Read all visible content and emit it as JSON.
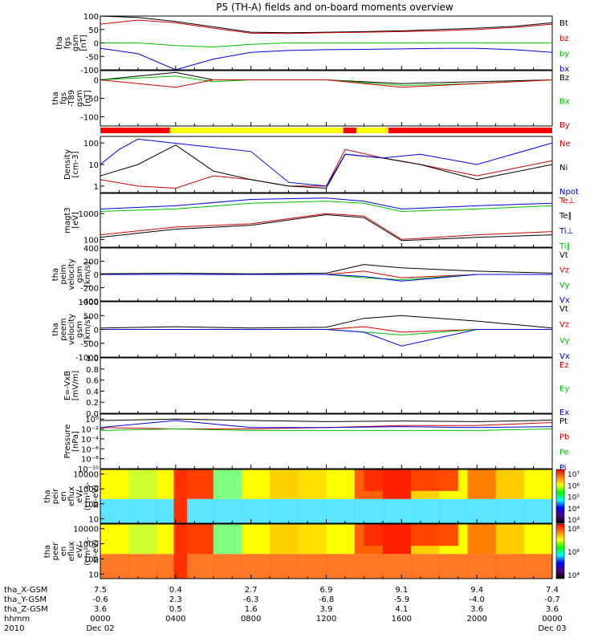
{
  "title": "P5 (TH-A) fields and on-board moments overview",
  "chart_data": [
    {
      "type": "line",
      "ylabel": [
        "tha",
        "fgs",
        "gsm",
        "[nT]"
      ],
      "ylim": [
        -100,
        100
      ],
      "yticks": [
        100,
        50,
        0,
        -50,
        -100
      ],
      "legend_placement": "right",
      "series": [
        {
          "name": "Bt",
          "color": "#000000",
          "x": [
            0,
            2,
            4,
            6,
            8,
            10,
            12,
            14,
            16,
            18,
            20,
            22,
            24
          ],
          "y": [
            100,
            95,
            80,
            60,
            40,
            38,
            40,
            42,
            45,
            50,
            55,
            62,
            75
          ]
        },
        {
          "name": "bz",
          "color": "#d00000",
          "x": [
            0,
            2,
            4,
            6,
            8,
            10,
            12,
            14,
            16,
            18,
            20,
            22,
            24
          ],
          "y": [
            70,
            85,
            75,
            55,
            36,
            35,
            38,
            40,
            42,
            45,
            50,
            58,
            70
          ]
        },
        {
          "name": "by",
          "color": "#00c000",
          "x": [
            0,
            2,
            4,
            6,
            8,
            10,
            12,
            14,
            16,
            18,
            20,
            22,
            24
          ],
          "y": [
            0,
            0,
            -10,
            -15,
            -5,
            0,
            0,
            0,
            0,
            0,
            0,
            0,
            0
          ]
        },
        {
          "name": "bx",
          "color": "#0000dd",
          "x": [
            0,
            2,
            4,
            6,
            8,
            10,
            12,
            14,
            16,
            18,
            20,
            22,
            24
          ],
          "y": [
            -20,
            -40,
            -100,
            -60,
            -35,
            -28,
            -25,
            -24,
            -22,
            -20,
            -20,
            -25,
            -35
          ]
        }
      ]
    },
    {
      "type": "line",
      "ylabel": [
        "tha",
        "fgs",
        "-T89",
        "gsm",
        "[nT]"
      ],
      "ylim": [
        -125,
        25
      ],
      "yticks": [
        0,
        -50,
        -100
      ],
      "legend_placement": "right",
      "series": [
        {
          "name": "Bz",
          "color": "#000000",
          "x": [
            0,
            4,
            6,
            8,
            12,
            16,
            20,
            24
          ],
          "y": [
            0,
            20,
            0,
            0,
            0,
            -10,
            -5,
            0
          ]
        },
        {
          "name": "Bx",
          "color": "#00c000",
          "x": [
            0,
            4,
            6,
            8,
            12,
            16,
            20,
            24
          ],
          "y": [
            0,
            10,
            -5,
            0,
            0,
            -15,
            -10,
            0
          ]
        },
        {
          "name": "By",
          "color": "#d00000",
          "x": [
            0,
            4,
            6,
            8,
            12,
            16,
            20,
            24
          ],
          "y": [
            0,
            -20,
            0,
            0,
            0,
            -20,
            -10,
            0
          ]
        }
      ]
    },
    {
      "type": "line",
      "ylabel": [
        "Density",
        "[cm-3]"
      ],
      "scale": "log",
      "ylim": [
        0.5,
        200
      ],
      "yticks": [
        "100",
        "10",
        "1"
      ],
      "legend_placement": "right",
      "series": [
        {
          "name": "Ne",
          "color": "#d00000",
          "x": [
            0,
            2,
            4,
            6,
            8,
            10,
            12,
            13,
            15,
            17,
            20,
            24
          ],
          "y": [
            2,
            1,
            0.8,
            3,
            2,
            1,
            1,
            50,
            20,
            10,
            3,
            15
          ]
        },
        {
          "name": "Ni",
          "color": "#000000",
          "x": [
            0,
            2,
            4,
            6,
            8,
            10,
            12,
            13,
            15,
            17,
            20,
            24
          ],
          "y": [
            3,
            10,
            80,
            5,
            2,
            1,
            0.8,
            30,
            20,
            10,
            2,
            10
          ]
        },
        {
          "name": "Npot",
          "color": "#0000dd",
          "x": [
            0,
            1,
            2,
            8,
            10,
            12,
            13,
            15,
            17,
            20,
            24
          ],
          "y": [
            10,
            50,
            150,
            40,
            1.5,
            1,
            30,
            20,
            30,
            10,
            100
          ]
        }
      ]
    },
    {
      "type": "line",
      "ylabel": [
        "magt3",
        "[eV]"
      ],
      "scale": "log",
      "ylim": [
        50,
        6000
      ],
      "yticks": [
        "1000",
        "100"
      ],
      "legend_placement": "right",
      "series": [
        {
          "name": "Te⊥",
          "color": "#d00000",
          "x": [
            0,
            4,
            8,
            12,
            14,
            16,
            20,
            24
          ],
          "y": [
            150,
            300,
            400,
            1000,
            800,
            100,
            150,
            200
          ]
        },
        {
          "name": "Te∥",
          "color": "#000000",
          "x": [
            0,
            4,
            8,
            12,
            14,
            16,
            20,
            24
          ],
          "y": [
            120,
            250,
            350,
            900,
            700,
            90,
            120,
            150
          ]
        },
        {
          "name": "Ti⊥",
          "color": "#0000dd",
          "x": [
            0,
            4,
            8,
            12,
            14,
            16,
            20,
            24
          ],
          "y": [
            1500,
            2000,
            3500,
            4000,
            3000,
            1500,
            2000,
            2500
          ]
        },
        {
          "name": "Ti∥",
          "color": "#00c000",
          "x": [
            0,
            4,
            8,
            12,
            14,
            16,
            20,
            24
          ],
          "y": [
            1200,
            1500,
            2500,
            3000,
            2500,
            1200,
            1500,
            2000
          ]
        }
      ]
    },
    {
      "type": "line",
      "ylabel": [
        "tha",
        "peim",
        "velocity",
        "gsm",
        "[km/s]"
      ],
      "ylim": [
        -400,
        400
      ],
      "yticks": [
        400,
        200,
        0,
        -200,
        -400
      ],
      "legend_placement": "right",
      "series": [
        {
          "name": "Vt",
          "color": "#000000",
          "x": [
            0,
            4,
            8,
            12,
            14,
            16,
            20,
            24
          ],
          "y": [
            10,
            20,
            10,
            20,
            150,
            100,
            50,
            20
          ]
        },
        {
          "name": "Vz",
          "color": "#d00000",
          "x": [
            0,
            4,
            8,
            12,
            14,
            16,
            20,
            24
          ],
          "y": [
            0,
            0,
            0,
            0,
            50,
            -50,
            0,
            0
          ]
        },
        {
          "name": "Vy",
          "color": "#00c000",
          "x": [
            0,
            4,
            8,
            12,
            14,
            16,
            20,
            24
          ],
          "y": [
            0,
            0,
            0,
            0,
            -50,
            -80,
            0,
            0
          ]
        },
        {
          "name": "Vx",
          "color": "#0000dd",
          "x": [
            0,
            4,
            8,
            12,
            14,
            16,
            20,
            24
          ],
          "y": [
            0,
            0,
            0,
            0,
            -30,
            -100,
            0,
            0
          ]
        }
      ]
    },
    {
      "type": "line",
      "ylabel": [
        "tha",
        "peem",
        "velocity",
        "gsm",
        "[km/s]"
      ],
      "ylim": [
        -1000,
        1000
      ],
      "yticks": [
        1000,
        500,
        0,
        -500,
        -1000
      ],
      "legend_placement": "right",
      "series": [
        {
          "name": "Vt",
          "color": "#000000",
          "x": [
            0,
            4,
            8,
            12,
            14,
            16,
            20,
            24
          ],
          "y": [
            50,
            100,
            50,
            80,
            400,
            500,
            300,
            50
          ]
        },
        {
          "name": "Vz",
          "color": "#d00000",
          "x": [
            0,
            4,
            8,
            12,
            14,
            16,
            20,
            24
          ],
          "y": [
            0,
            0,
            0,
            0,
            100,
            -100,
            0,
            0
          ]
        },
        {
          "name": "Vy",
          "color": "#00c000",
          "x": [
            0,
            4,
            8,
            12,
            14,
            16,
            20,
            24
          ],
          "y": [
            0,
            0,
            0,
            0,
            -100,
            -200,
            0,
            0
          ]
        },
        {
          "name": "Vx",
          "color": "#0000dd",
          "x": [
            0,
            4,
            8,
            12,
            14,
            16,
            20,
            24
          ],
          "y": [
            0,
            0,
            0,
            0,
            -100,
            -600,
            0,
            0
          ]
        }
      ]
    },
    {
      "type": "line",
      "ylabel": [
        "E=-VxB",
        "[mV/m]"
      ],
      "ylim": [
        0,
        1
      ],
      "yticks": [
        "1.0",
        "0.8",
        "0.6",
        "0.4",
        "0.2",
        "0.0"
      ],
      "legend_placement": "right",
      "series": [
        {
          "name": "Ez",
          "color": "#d00000",
          "x": [],
          "y": []
        },
        {
          "name": "Ey",
          "color": "#00c000",
          "x": [],
          "y": []
        },
        {
          "name": "Ex",
          "color": "#0000dd",
          "x": [],
          "y": []
        }
      ]
    },
    {
      "type": "line",
      "ylabel": [
        "Pressure",
        "[nPa]"
      ],
      "scale": "log",
      "ylim": [
        1e-10,
        10
      ],
      "yticks": [
        "10⁰",
        "10⁻²",
        "10⁻⁴",
        "10⁻⁶",
        "10⁻⁸",
        "10⁻¹⁰"
      ],
      "legend_placement": "right",
      "series": [
        {
          "name": "Pt",
          "color": "#000000",
          "x": [
            0,
            4,
            8,
            12,
            16,
            20,
            24
          ],
          "y": [
            0.5,
            1,
            0.5,
            0.3,
            0.4,
            0.3,
            0.6
          ]
        },
        {
          "name": "Pb",
          "color": "#d00000",
          "x": [
            0,
            4,
            8,
            12,
            16,
            20,
            24
          ],
          "y": [
            0.02,
            0.01,
            0.01,
            0.02,
            0.05,
            0.05,
            0.2
          ]
        },
        {
          "name": "Pe",
          "color": "#00c000",
          "x": [
            0,
            4,
            8,
            12,
            16,
            20,
            24
          ],
          "y": [
            0.005,
            0.01,
            0.005,
            0.005,
            0.005,
            0.005,
            0.01
          ]
        },
        {
          "name": "Pi",
          "color": "#0000dd",
          "x": [
            0,
            4,
            8,
            12,
            16,
            20,
            24
          ],
          "y": [
            0.02,
            0.5,
            0.02,
            0.02,
            0.03,
            0.02,
            0.03
          ]
        }
      ]
    },
    {
      "type": "heatmap",
      "ylabel": [
        "tha",
        "peir",
        "en",
        "eflux",
        "eV/",
        "(cm²-s-",
        "sr-eV)"
      ],
      "scale": "log",
      "ylim": [
        5,
        20000
      ],
      "yticks": [
        "10000",
        "1000",
        "100",
        "10"
      ],
      "colorbar": [
        "10⁷",
        "10⁶",
        "10⁵",
        "10⁴",
        "10³"
      ]
    },
    {
      "type": "heatmap",
      "ylabel": [
        "tha",
        "peer",
        "en",
        "eflux",
        "eV/",
        "(cm²-s-",
        "sr-eV)"
      ],
      "scale": "log",
      "ylim": [
        5,
        20000
      ],
      "yticks": [
        "10000",
        "1000",
        "100",
        "10"
      ],
      "colorbar": [
        "10⁸",
        "10⁶",
        "10⁴"
      ]
    }
  ],
  "ephemeris": {
    "row_labels": [
      "tha_X-GSM",
      "tha_Y-GSM",
      "tha_Z-GSM",
      "hhmm",
      "2010"
    ],
    "columns": [
      {
        "hour": 0,
        "values": [
          "7.5",
          "-0.6",
          "3.6",
          "0000",
          "Dec 02"
        ]
      },
      {
        "hour": 4,
        "values": [
          "0.4",
          "2.3",
          "0.5",
          "0400",
          ""
        ]
      },
      {
        "hour": 8,
        "values": [
          "2.7",
          "-6.3",
          "1.6",
          "0800",
          ""
        ]
      },
      {
        "hour": 12,
        "values": [
          "6.9",
          "-6.8",
          "3.9",
          "1200",
          ""
        ]
      },
      {
        "hour": 16,
        "values": [
          "9.1",
          "-5.9",
          "4.1",
          "1600",
          ""
        ]
      },
      {
        "hour": 20,
        "values": [
          "9.4",
          "-4.0",
          "3.6",
          "2000",
          ""
        ]
      },
      {
        "hour": 24,
        "values": [
          "7.4",
          "-0.7",
          "3.6",
          "0000",
          "Dec 03"
        ]
      }
    ]
  },
  "mode_bar": [
    {
      "start": 0,
      "end": 3.7,
      "color": "#ff0000"
    },
    {
      "start": 3.7,
      "end": 12.9,
      "color": "#ffff00"
    },
    {
      "start": 12.9,
      "end": 13.6,
      "color": "#ff0000"
    },
    {
      "start": 13.6,
      "end": 15.3,
      "color": "#ffff00"
    },
    {
      "start": 15.3,
      "end": 24,
      "color": "#ff0000"
    }
  ]
}
